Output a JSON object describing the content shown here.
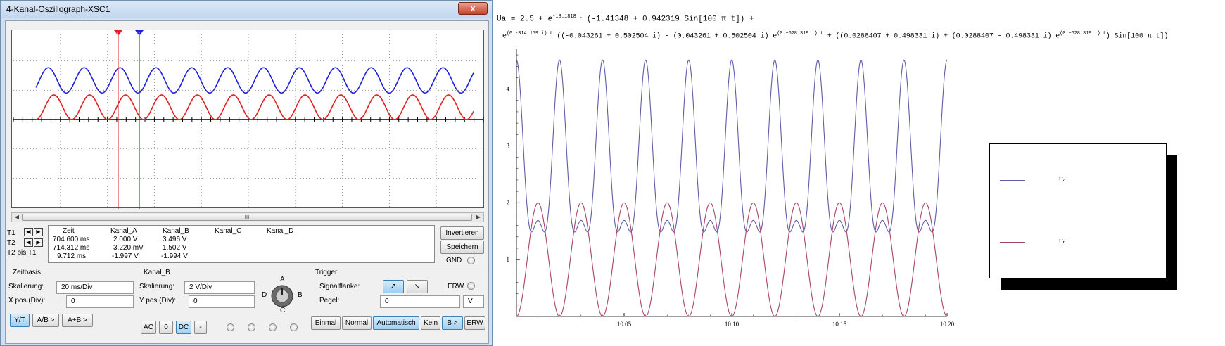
{
  "window": {
    "title": "4-Kanal-Oszillograph-XSC1",
    "close_label": "x"
  },
  "scope": {
    "cursor_t1_label": "1",
    "cursor_t2_label": "2",
    "scroll_grip": "III"
  },
  "measurements": {
    "row_labels": [
      "T1",
      "T2",
      "T2 bis T1"
    ],
    "headers": [
      "Zeit",
      "Kanal_A",
      "Kanal_B",
      "Kanal_C",
      "Kanal_D"
    ],
    "rows": [
      [
        "704.600 ms",
        "2.000 V",
        "3.496 V"
      ],
      [
        "714.312 ms",
        "3.220 mV",
        "1.502 V"
      ],
      [
        "9.712 ms",
        "-1.997 V",
        "-1.994 V"
      ]
    ],
    "buttons": {
      "invert": "Invertieren",
      "save": "Speichern",
      "gnd": "GND"
    }
  },
  "zeitbasis": {
    "title": "Zeitbasis",
    "scale_label": "Skalierung:",
    "scale_value": "20 ms/Div",
    "xpos_label": "X pos.(Div):",
    "xpos_value": "0",
    "mode_buttons": [
      "Y/T",
      "A/B >",
      "A+B >"
    ]
  },
  "kanal_b": {
    "title": "Kanal_B",
    "scale_label": "Skalierung:",
    "scale_value": "2  V/Div",
    "ypos_label": "Y pos.(Div):",
    "ypos_value": "0",
    "coupling_buttons": [
      "AC",
      "0",
      "DC",
      "-"
    ],
    "knob_labels": [
      "A",
      "B",
      "C",
      "D"
    ]
  },
  "trigger": {
    "title": "Trigger",
    "edge_label": "Signalflanke:",
    "level_label": "Pegel:",
    "level_value": "0",
    "level_unit": "V",
    "erw_label": "ERW",
    "mode_buttons": [
      "Einmal",
      "Normal",
      "Automatisch",
      "Kein",
      "B >",
      "ERW"
    ]
  },
  "equation": {
    "line1_pre": "Ua = 2.5 + e",
    "line1_exp": "-18.1818 t",
    "line1_post": " (-1.41348 + 0.942319 Sin[100 π t]) +",
    "line2_e": "e",
    "line2_exp1": "(0.-314.159 i) t",
    "line2_mid1": " ((-0.043261 + 0.502504 i) - (0.043261 + 0.502504 i) e",
    "line2_exp2": "(0.+628.319 i) t",
    "line2_mid2": " + ((0.0288407 + 0.498331 i) + (0.0288407 - 0.498331 i) e",
    "line2_exp3": "(0.+628.319 i) t",
    "line2_end": ") Sin[100 π t])"
  },
  "chart_data": {
    "type": "line",
    "x_ticks": [
      "10.05",
      "10.10",
      "10.15",
      "10.20"
    ],
    "y_ticks": [
      "1",
      "2",
      "3",
      "4"
    ],
    "xlim": [
      10.0,
      10.2
    ],
    "ylim": [
      0,
      4.7
    ],
    "series": [
      {
        "name": "Ua",
        "color": "#5e5ea8",
        "formula": "2.5 + 1.41*cos(2*pi*50*(t-10)) + 0.6*cos(4*pi*50*(t-10))"
      },
      {
        "name": "Ue",
        "color": "#a8456a",
        "formula": "1 - cos(2*pi*50*(t-10))"
      }
    ]
  }
}
